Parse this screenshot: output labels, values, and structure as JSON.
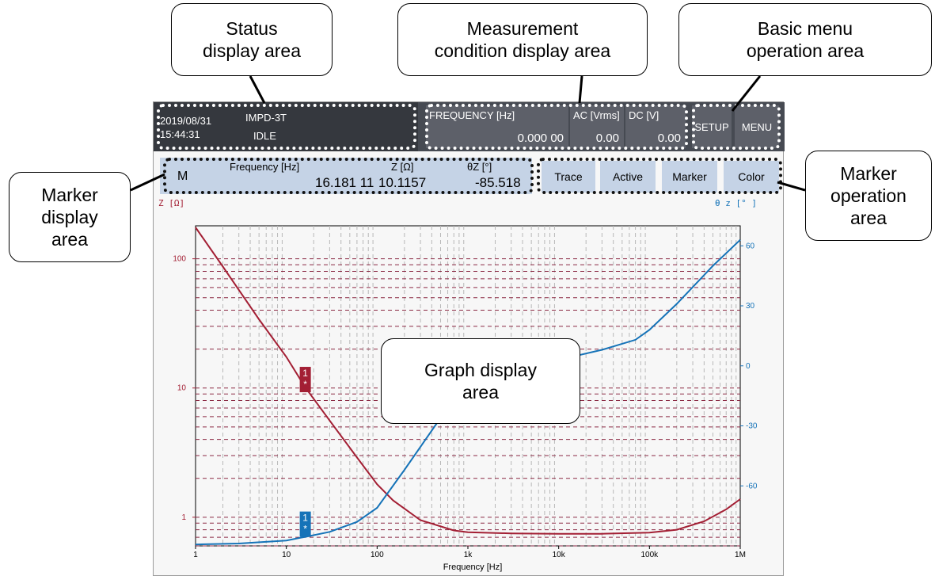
{
  "callouts": {
    "status": "Status\ndisplay area",
    "measurement": "Measurement\ncondition display area",
    "basic_menu": "Basic menu\noperation area",
    "marker_display": "Marker\ndisplay\narea",
    "marker_operation": "Marker\noperation\narea",
    "graph": "Graph display\narea"
  },
  "status": {
    "date": "2019/08/31",
    "time": "15:44:31",
    "mode": "IMPD-3T",
    "state": "IDLE"
  },
  "conditions": {
    "frequency_label": "FREQUENCY [Hz]",
    "frequency_value": "0.000 00",
    "ac_label": "AC [Vrms]",
    "ac_value": "0.00",
    "dc_label": "DC [V]",
    "dc_value": "0.00"
  },
  "menu": {
    "setup": "SETUP",
    "menu": "MENU"
  },
  "marker": {
    "id": "M",
    "freq_label": "Frequency [Hz]",
    "freq_value": "16.181 11",
    "z_label": "Z [Ω]",
    "z_value": "10.1157",
    "theta_label": "θZ [°]",
    "theta_value": "-85.518"
  },
  "marker_ops": {
    "trace": "Trace",
    "active": "Active",
    "marker": "Marker",
    "color": "Color"
  },
  "colors": {
    "z_trace": "#a31f34",
    "theta_trace": "#1573b8",
    "grid_v": "#b8b8b8",
    "grid_h": "#8b2a44"
  },
  "chart_data": {
    "type": "line",
    "xlabel": "Frequency [Hz]",
    "ylabel": "Z [Ω]",
    "y2label": "θ z [° ]",
    "x_scale": "log",
    "xlim": [
      1,
      1000000
    ],
    "x_ticks": [
      {
        "v": 1,
        "t": "1"
      },
      {
        "v": 10,
        "t": "10"
      },
      {
        "v": 100,
        "t": "100"
      },
      {
        "v": 1000,
        "t": "1k"
      },
      {
        "v": 10000,
        "t": "10k"
      },
      {
        "v": 100000,
        "t": "100k"
      },
      {
        "v": 1000000,
        "t": "1M"
      }
    ],
    "y_scale": "log",
    "ylim": [
      0.6,
      180
    ],
    "y_ticks": [
      {
        "v": 1,
        "t": "1"
      },
      {
        "v": 10,
        "t": "10"
      },
      {
        "v": 100,
        "t": "100"
      }
    ],
    "y2lim": [
      -90,
      70
    ],
    "y2_ticks": [
      {
        "v": -60,
        "t": "-60"
      },
      {
        "v": -30,
        "t": "-30"
      },
      {
        "v": 0,
        "t": "0"
      },
      {
        "v": 30,
        "t": "30"
      },
      {
        "v": 60,
        "t": "60"
      }
    ],
    "grid": true,
    "series": [
      {
        "axis": "left",
        "color": "#a31f34",
        "x": [
          1,
          2,
          5,
          10,
          16.18,
          30,
          60,
          100,
          150,
          300,
          700,
          1000,
          3000,
          10000,
          30000,
          100000,
          200000,
          400000,
          700000,
          1000000
        ],
        "y": [
          175,
          87,
          34,
          17.4,
          10.1,
          5.6,
          2.9,
          1.8,
          1.35,
          0.95,
          0.79,
          0.765,
          0.75,
          0.745,
          0.745,
          0.76,
          0.8,
          0.93,
          1.15,
          1.38
        ]
      },
      {
        "axis": "right",
        "color": "#1573b8",
        "x": [
          1,
          3,
          10,
          16.18,
          30,
          60,
          100,
          200,
          500,
          1000,
          2000,
          5000,
          10000,
          30000,
          70000,
          100000,
          200000,
          500000,
          1000000
        ],
        "y": [
          -89.3,
          -88.8,
          -87.3,
          -85.5,
          -83,
          -78,
          -71,
          -52,
          -26,
          -12,
          -4,
          0,
          3,
          8,
          13,
          18,
          31,
          50,
          63
        ]
      }
    ],
    "markers": [
      {
        "label": "1\n*",
        "x": 16.18,
        "y": 10.1,
        "axis": "left",
        "color": "#a31f34"
      },
      {
        "label": "1\n*",
        "x": 16.18,
        "y": -85.5,
        "axis": "right",
        "color": "#1573b8"
      }
    ]
  }
}
